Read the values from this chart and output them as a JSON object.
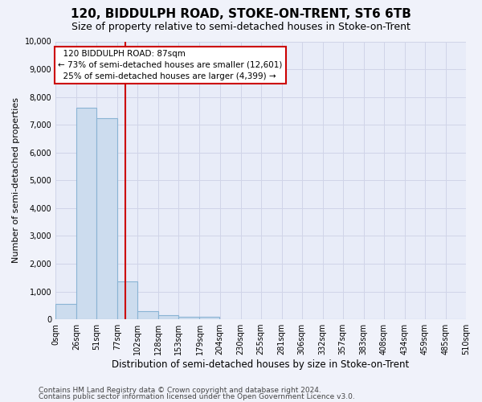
{
  "title": "120, BIDDULPH ROAD, STOKE-ON-TRENT, ST6 6TB",
  "subtitle": "Size of property relative to semi-detached houses in Stoke-on-Trent",
  "xlabel": "Distribution of semi-detached houses by size in Stoke-on-Trent",
  "ylabel": "Number of semi-detached properties",
  "footnote1": "Contains HM Land Registry data © Crown copyright and database right 2024.",
  "footnote2": "Contains public sector information licensed under the Open Government Licence v3.0.",
  "bar_edges": [
    0,
    26,
    51,
    77,
    102,
    128,
    153,
    179,
    204,
    230,
    255,
    281,
    306,
    332,
    357,
    383,
    408,
    434,
    459,
    485,
    510
  ],
  "bar_heights": [
    550,
    7600,
    7250,
    1350,
    300,
    150,
    100,
    100,
    0,
    0,
    0,
    0,
    0,
    0,
    0,
    0,
    0,
    0,
    0,
    0
  ],
  "bar_color": "#ccdcee",
  "bar_edge_color": "#8ab4d4",
  "grid_color": "#d0d4e8",
  "background_color": "#f0f2fa",
  "plot_bg_color": "#e8ecf8",
  "property_size": 87,
  "property_label": "120 BIDDULPH ROAD: 87sqm",
  "pct_smaller": 73,
  "pct_smaller_n": "12,601",
  "pct_larger": 25,
  "pct_larger_n": "4,399",
  "annotation_box_color": "#cc0000",
  "vline_color": "#cc0000",
  "ylim": [
    0,
    10000
  ],
  "yticks": [
    0,
    1000,
    2000,
    3000,
    4000,
    5000,
    6000,
    7000,
    8000,
    9000,
    10000
  ],
  "title_fontsize": 11,
  "subtitle_fontsize": 9,
  "xlabel_fontsize": 8.5,
  "ylabel_fontsize": 8,
  "tick_fontsize": 7,
  "footnote_fontsize": 6.5,
  "annot_fontsize": 7.5
}
